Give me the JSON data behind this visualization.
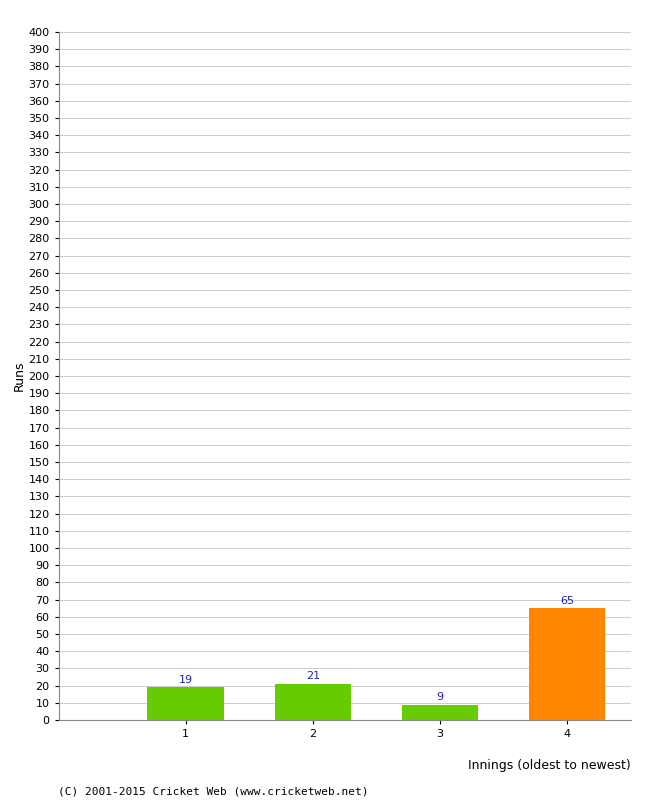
{
  "categories": [
    "1",
    "2",
    "3",
    "4"
  ],
  "values": [
    19,
    21,
    9,
    65
  ],
  "bar_colors": [
    "#66cc00",
    "#66cc00",
    "#66cc00",
    "#ff8800"
  ],
  "ylabel": "Runs",
  "xlabel": "Innings (oldest to newest)",
  "ylim": [
    0,
    400
  ],
  "ytick_min": 0,
  "ytick_max": 400,
  "ytick_step": 10,
  "value_label_color": "#2222aa",
  "value_label_fontsize": 8,
  "axis_label_fontsize": 9,
  "tick_label_fontsize": 8,
  "footer": "(C) 2001-2015 Cricket Web (www.cricketweb.net)",
  "footer_fontsize": 8,
  "background_color": "#ffffff",
  "grid_color": "#cccccc",
  "bar_width": 0.6,
  "xlim_left": 0.0,
  "xlim_right": 4.5
}
